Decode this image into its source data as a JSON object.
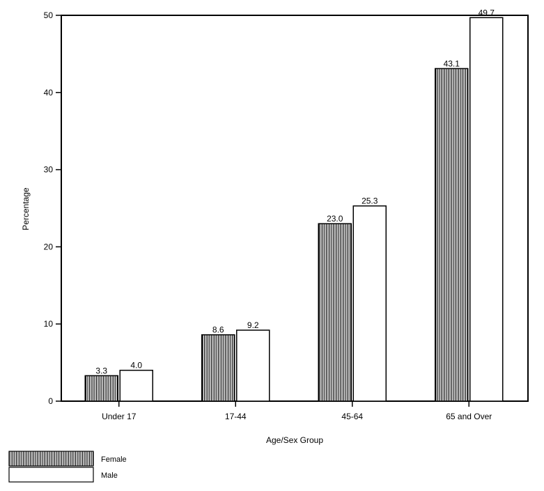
{
  "chart_data": {
    "type": "bar",
    "categories": [
      "Under 17",
      "17-44",
      "45-64",
      "65 and Over"
    ],
    "series": [
      {
        "name": "Female",
        "values": [
          3.3,
          8.6,
          23.0,
          43.1
        ],
        "value_labels": [
          "3.3",
          "8.6",
          "23.0",
          "43.1"
        ],
        "pattern": "vertical-hatch"
      },
      {
        "name": "Male",
        "values": [
          4.0,
          9.2,
          25.3,
          49.7
        ],
        "value_labels": [
          "4.0",
          "9.2",
          "25.3",
          "49.7"
        ],
        "pattern": "solid-white"
      }
    ],
    "title": "",
    "xlabel": "Age/Sex Group",
    "ylabel": "Percentage",
    "ylim": [
      0,
      50
    ],
    "yticks": [
      0,
      10,
      20,
      30,
      40,
      50
    ],
    "grid": false,
    "legend_position": "bottom-left"
  },
  "colors": {
    "stroke": "#000000",
    "male_fill": "#ffffff",
    "female_hatch_bg": "#ffffff",
    "female_hatch_line": "#000000"
  }
}
